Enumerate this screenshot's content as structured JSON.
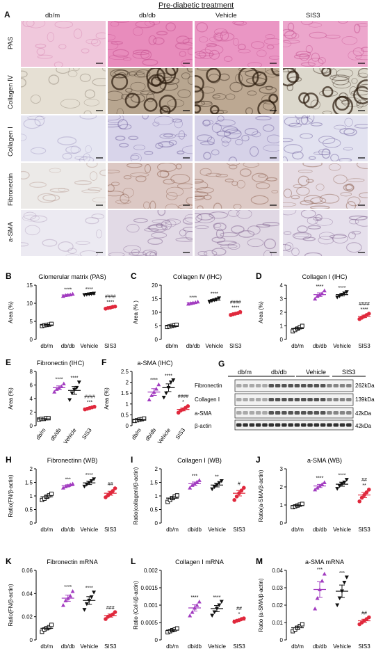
{
  "figure": {
    "header": "Pre-diabetic treatment",
    "panel_a": {
      "label": "A",
      "columns": [
        "db/m",
        "db/db",
        "Vehicle",
        "SIS3"
      ],
      "rows": [
        {
          "label": "PAS",
          "colors": [
            "#f0c8dc",
            "#e88cbc",
            "#ea96c4",
            "#eca6cc"
          ],
          "texture": "#c04a8a"
        },
        {
          "label": "Collagen Ⅳ",
          "colors": [
            "#e6e0d4",
            "#b8a690",
            "#bca892",
            "#dcd8cc"
          ],
          "texture": "#3a2a1c"
        },
        {
          "label": "Collagen Ⅰ",
          "colors": [
            "#e6e6f2",
            "#d8d4ea",
            "#d6d2e8",
            "#e2e2f0"
          ],
          "texture": "#6a5a9a"
        },
        {
          "label": "Fibronectin",
          "colors": [
            "#eceae8",
            "#dcc8c4",
            "#ddcac6",
            "#e6dce4"
          ],
          "texture": "#8a5a4a"
        },
        {
          "label": "a-SMA",
          "colors": [
            "#eceaf2",
            "#e2dae6",
            "#e0d8e4",
            "#e6e0ec"
          ],
          "texture": "#7a5a8a"
        }
      ]
    },
    "panel_g": {
      "label": "G",
      "groups": [
        "db/m",
        "db/db",
        "Vehicle",
        "SIS3"
      ],
      "bands": [
        {
          "name": "Fibronectin",
          "size": "262kDa"
        },
        {
          "name": "Collagen Ⅰ",
          "size": "139kDa"
        },
        {
          "name": "a-SMA",
          "size": "42kDa"
        },
        {
          "name": "β-actin",
          "size": "42kDa"
        }
      ]
    }
  },
  "chart_data": [
    {
      "id": "B",
      "type": "scatter",
      "title": "Glomerular matrix (PAS)",
      "ylabel": "Area (%)",
      "ylim": [
        0,
        15
      ],
      "yticks": [
        0,
        5,
        10,
        15
      ],
      "categories": [
        "db/m",
        "db/db",
        "Vehicle",
        "SIS3"
      ],
      "means": [
        4,
        12.3,
        12.5,
        8.8
      ],
      "points": [
        [
          3.7,
          3.9,
          4,
          4.1,
          4.3
        ],
        [
          12,
          12.2,
          12.3,
          12.4,
          12.6
        ],
        [
          12.3,
          12.4,
          12.5,
          12.6,
          12.7
        ],
        [
          8.5,
          8.7,
          8.8,
          9,
          9.1
        ]
      ],
      "sig": [
        "",
        "****",
        "****",
        "####\n****"
      ]
    },
    {
      "id": "C",
      "type": "scatter",
      "title": "Collagen Ⅳ (IHC)",
      "ylabel": "Area (% )",
      "ylim": [
        0,
        20
      ],
      "yticks": [
        0,
        5,
        10,
        15,
        20
      ],
      "categories": [
        "db/m",
        "db/db",
        "Vehicle",
        "SIS3"
      ],
      "means": [
        5,
        13.5,
        14.5,
        9.5
      ],
      "points": [
        [
          4.6,
          4.8,
          5,
          5.2,
          5.4
        ],
        [
          13.1,
          13.3,
          13.5,
          13.7,
          13.9
        ],
        [
          13.8,
          14.2,
          14.5,
          14.8,
          15.2
        ],
        [
          9,
          9.3,
          9.5,
          9.7,
          10.1
        ]
      ],
      "sig": [
        "",
        "****",
        "****",
        "####\n****"
      ]
    },
    {
      "id": "D",
      "type": "scatter",
      "title": "Collagen Ⅰ (IHC)",
      "ylabel": "Area (%)",
      "ylim": [
        0,
        4
      ],
      "yticks": [
        0,
        1,
        2,
        3,
        4
      ],
      "categories": [
        "db/m",
        "db/db",
        "Vehicle",
        "SIS3"
      ],
      "means": [
        0.8,
        3.3,
        3.3,
        1.7
      ],
      "points": [
        [
          0.6,
          0.7,
          0.8,
          0.9,
          1
        ],
        [
          3,
          3.2,
          3.3,
          3.4,
          3.6
        ],
        [
          3.1,
          3.2,
          3.3,
          3.4,
          3.5
        ],
        [
          1.5,
          1.6,
          1.7,
          1.8,
          1.9
        ]
      ],
      "sig": [
        "",
        "****",
        "****",
        "####\n****"
      ]
    },
    {
      "id": "E",
      "type": "scatter",
      "title": "Fibronectin (IHC)",
      "ylabel": "Area (%)",
      "ylim": [
        0,
        8
      ],
      "yticks": [
        0,
        2,
        4,
        6,
        8
      ],
      "categories": [
        "db/m",
        "db/db",
        "Vehicle",
        "SIS3"
      ],
      "means": [
        1,
        5.6,
        5.2,
        2.6
      ],
      "points": [
        [
          0.9,
          1,
          1,
          1.1,
          1.1
        ],
        [
          5,
          5.4,
          5.6,
          5.8,
          6.2
        ],
        [
          3.8,
          4.8,
          5.3,
          5.6,
          6.4
        ],
        [
          2.4,
          2.5,
          2.6,
          2.7,
          2.8
        ]
      ],
      "sig": [
        "",
        "****",
        "****",
        "####\n***"
      ]
    },
    {
      "id": "F",
      "type": "scatter",
      "title": "a-SMA (IHC)",
      "ylabel": "Area (%)",
      "ylim": [
        0,
        2.5
      ],
      "yticks": [
        0,
        0.5,
        1,
        1.5,
        2,
        2.5
      ],
      "categories": [
        "db/m",
        "db/db",
        "Vehicle",
        "SIS3"
      ],
      "means": [
        0.28,
        1.55,
        1.75,
        0.75
      ],
      "points": [
        [
          0.22,
          0.25,
          0.28,
          0.3,
          0.33
        ],
        [
          1.2,
          1.4,
          1.55,
          1.7,
          1.9
        ],
        [
          1.3,
          1.5,
          1.75,
          2,
          2.1
        ],
        [
          0.6,
          0.7,
          0.75,
          0.82,
          0.9
        ]
      ],
      "sig": [
        "",
        "****",
        "****",
        "####\n*"
      ]
    },
    {
      "id": "H",
      "type": "scatter",
      "title": "Fibronectinn (WB)",
      "ylabel": "Ratio(FN/β-actin)",
      "ylim": [
        0,
        2.0
      ],
      "yticks": [
        0,
        0.5,
        1.0,
        1.5,
        2.0
      ],
      "categories": [
        "db/m",
        "db/db",
        "Vehicle",
        "SIS3"
      ],
      "means": [
        0.97,
        1.38,
        1.48,
        1.1
      ],
      "points": [
        [
          0.85,
          0.9,
          0.97,
          1.02,
          1.08
        ],
        [
          1.3,
          1.35,
          1.38,
          1.42,
          1.45
        ],
        [
          1.35,
          1.42,
          1.48,
          1.55,
          1.62
        ],
        [
          0.95,
          1.02,
          1.1,
          1.18,
          1.28
        ]
      ],
      "sig": [
        "",
        "***",
        "****",
        "##"
      ]
    },
    {
      "id": "I",
      "type": "scatter",
      "title": "Collagen Ⅰ (WB)",
      "ylabel": "Ratio(collagenⅠ/β-actin)",
      "ylim": [
        0,
        2.0
      ],
      "yticks": [
        0,
        0.5,
        1.0,
        1.5,
        2.0
      ],
      "categories": [
        "db/m",
        "db/db",
        "Vehicle",
        "SIS3"
      ],
      "means": [
        0.92,
        1.45,
        1.4,
        1.1
      ],
      "points": [
        [
          0.78,
          0.85,
          0.92,
          0.98,
          1.02
        ],
        [
          1.3,
          1.4,
          1.45,
          1.52,
          1.58
        ],
        [
          1.25,
          1.33,
          1.4,
          1.48,
          1.55
        ],
        [
          0.85,
          0.98,
          1.1,
          1.2,
          1.3
        ]
      ],
      "sig": [
        "",
        "***",
        "**",
        "#"
      ]
    },
    {
      "id": "J",
      "type": "scatter",
      "title": "a-SMA (WB)",
      "ylabel": "Ratio(a-SMA/β-actin)",
      "ylim": [
        0,
        3
      ],
      "yticks": [
        0,
        1,
        2,
        3
      ],
      "categories": [
        "db/m",
        "db/db",
        "Vehicle",
        "SIS3"
      ],
      "means": [
        0.97,
        2.05,
        2.15,
        1.55
      ],
      "points": [
        [
          0.88,
          0.92,
          0.97,
          1.02,
          1.06
        ],
        [
          1.85,
          1.95,
          2.05,
          2.15,
          2.25
        ],
        [
          1.9,
          2.05,
          2.15,
          2.25,
          2.4
        ],
        [
          1.2,
          1.4,
          1.55,
          1.7,
          1.85
        ]
      ],
      "sig": [
        "",
        "****",
        "****",
        "##\n**"
      ]
    },
    {
      "id": "K",
      "type": "scatter",
      "title": "Fibronectin mRNA",
      "ylabel": "Ratio(FN/β-actin)",
      "ylim": [
        0,
        0.06
      ],
      "yticks": [
        0,
        0.02,
        0.04,
        0.06
      ],
      "categories": [
        "db/m",
        "db/db",
        "Vehicle",
        "SIS3"
      ],
      "means": [
        0.01,
        0.036,
        0.034,
        0.021
      ],
      "points": [
        [
          0.007,
          0.009,
          0.01,
          0.011,
          0.013
        ],
        [
          0.03,
          0.034,
          0.036,
          0.038,
          0.042
        ],
        [
          0.026,
          0.031,
          0.034,
          0.037,
          0.041
        ],
        [
          0.018,
          0.02,
          0.021,
          0.022,
          0.024
        ]
      ],
      "sig": [
        "",
        "****",
        "****",
        "###"
      ]
    },
    {
      "id": "L",
      "type": "scatter",
      "title": "Collagen Ⅰ mRNA",
      "ylabel": "Ratio (Col-Ⅰ/β-actin)",
      "ylim": [
        0,
        0.002
      ],
      "yticks": [
        0,
        0.0005,
        0.001,
        0.0015,
        0.002
      ],
      "categories": [
        "db/m",
        "db/db",
        "Vehicle",
        "SIS3"
      ],
      "means": [
        0.00028,
        0.00092,
        0.0009,
        0.00057
      ],
      "points": [
        [
          0.00022,
          0.00025,
          0.00028,
          0.0003,
          0.00033
        ],
        [
          0.0007,
          0.0008,
          0.00092,
          0.001,
          0.0011
        ],
        [
          0.0007,
          0.0008,
          0.0009,
          0.001,
          0.0011
        ],
        [
          0.00052,
          0.00055,
          0.00057,
          0.0006,
          0.00062
        ]
      ],
      "sig": [
        "",
        "****",
        "****",
        "##\n*"
      ]
    },
    {
      "id": "M",
      "type": "scatter",
      "title": "a-SMA mRNA",
      "ylabel": "Ratio (a-SMA/β-actin)",
      "ylim": [
        0,
        0.04
      ],
      "yticks": [
        0,
        0.01,
        0.02,
        0.03,
        0.04
      ],
      "categories": [
        "db/m",
        "db/db",
        "Vehicle",
        "SIS3"
      ],
      "means": [
        0.007,
        0.029,
        0.028,
        0.011
      ],
      "points": [
        [
          0.005,
          0.006,
          0.007,
          0.008,
          0.009
        ],
        [
          0.018,
          0.024,
          0.029,
          0.034,
          0.038
        ],
        [
          0.02,
          0.024,
          0.028,
          0.033,
          0.036
        ],
        [
          0.009,
          0.01,
          0.011,
          0.012,
          0.013
        ]
      ],
      "sig": [
        "",
        "***",
        "***",
        "##"
      ]
    }
  ],
  "colors": [
    "#111111",
    "#a23cc0",
    "#111111",
    "#e0283c"
  ]
}
